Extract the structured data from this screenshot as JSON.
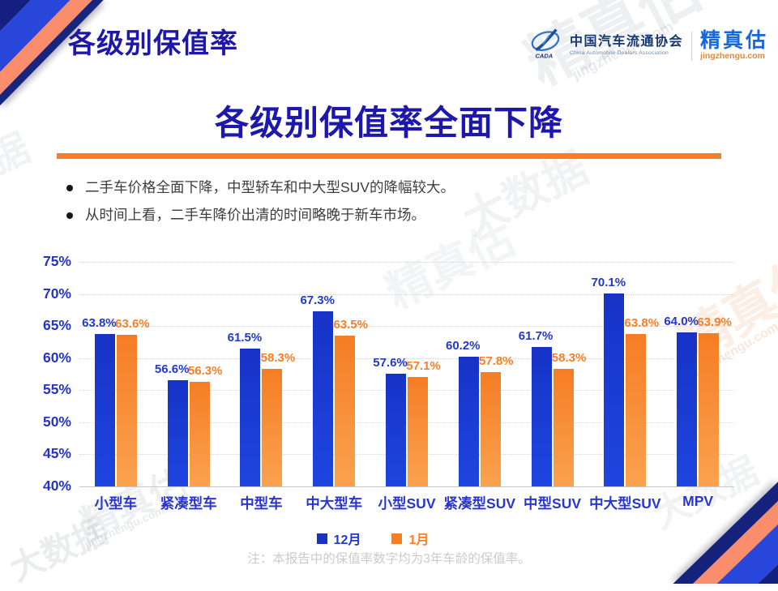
{
  "header": {
    "slide_title": "各级别保值率",
    "logo": {
      "org_name_cn": "中国汽车流通协会",
      "org_name_en": "China Automobile Dealers Association",
      "brand_name": "精真估",
      "brand_site": "jingzhengu.com",
      "emblem_icon": "cada-emblem-icon"
    }
  },
  "main": {
    "title": "各级别保值率全面下降",
    "bullets": [
      "二手车价格全面下降，中型轿车和中大型SUV的降幅较大。",
      "从时间上看，二手车降价出清的时间略晚于新车市场。"
    ],
    "footnote": "注：本报告中的保值率数字均为3年车龄的保值率。"
  },
  "chart_data": {
    "type": "bar",
    "title": "",
    "xlabel": "",
    "ylabel": "",
    "categories": [
      "小型车",
      "紧凑型车",
      "中型车",
      "中大型车",
      "小型SUV",
      "紧凑型SUV",
      "中型SUV",
      "中大型SUV",
      "MPV"
    ],
    "series": [
      {
        "name": "12月",
        "values": [
          63.8,
          56.6,
          61.5,
          67.3,
          57.6,
          60.2,
          61.7,
          70.1,
          64.0
        ],
        "labels": [
          "63.8%",
          "56.6%",
          "61.5%",
          "67.3%",
          "57.6%",
          "60.2%",
          "61.7%",
          "70.1%",
          "64.0%"
        ],
        "color_top": "#1733c6",
        "color_bottom": "#1e45e0",
        "label_color": "#2139cc"
      },
      {
        "name": "1月",
        "values": [
          63.6,
          56.3,
          58.3,
          63.5,
          57.1,
          57.8,
          58.3,
          63.8,
          63.9
        ],
        "labels": [
          "63.6%",
          "56.3%",
          "58.3%",
          "63.5%",
          "57.1%",
          "57.8%",
          "58.3%",
          "63.8%",
          "63.9%"
        ],
        "color_top": "#f57d24",
        "color_bottom": "#fba24f",
        "label_color": "#f87f28"
      }
    ],
    "ylim": [
      40,
      75
    ],
    "ytick_step": 5,
    "ytick_labels": [
      "40%",
      "45%",
      "50%",
      "55%",
      "60%",
      "65%",
      "70%",
      "75%"
    ],
    "grid": "horizontal-dotted",
    "legend_position": "bottom-center"
  },
  "watermarks": {
    "brand": "精真估",
    "site": "jingzhengu.com",
    "tag": "大数据",
    "tag_short": "据"
  },
  "colors": {
    "title_blue": "#1e17ab",
    "rule_orange": "#f87d28",
    "axis_text_blue": "#2433cc",
    "bar_blue": "#1733c6",
    "bar_orange": "#f57d24",
    "brand_blue": "#1668da",
    "brand_orange": "#f9831e",
    "note_gray": "#cbcbcb",
    "deco_navy": "#141f80",
    "deco_blue": "#2847da",
    "deco_salmon": "#f98d6c"
  }
}
